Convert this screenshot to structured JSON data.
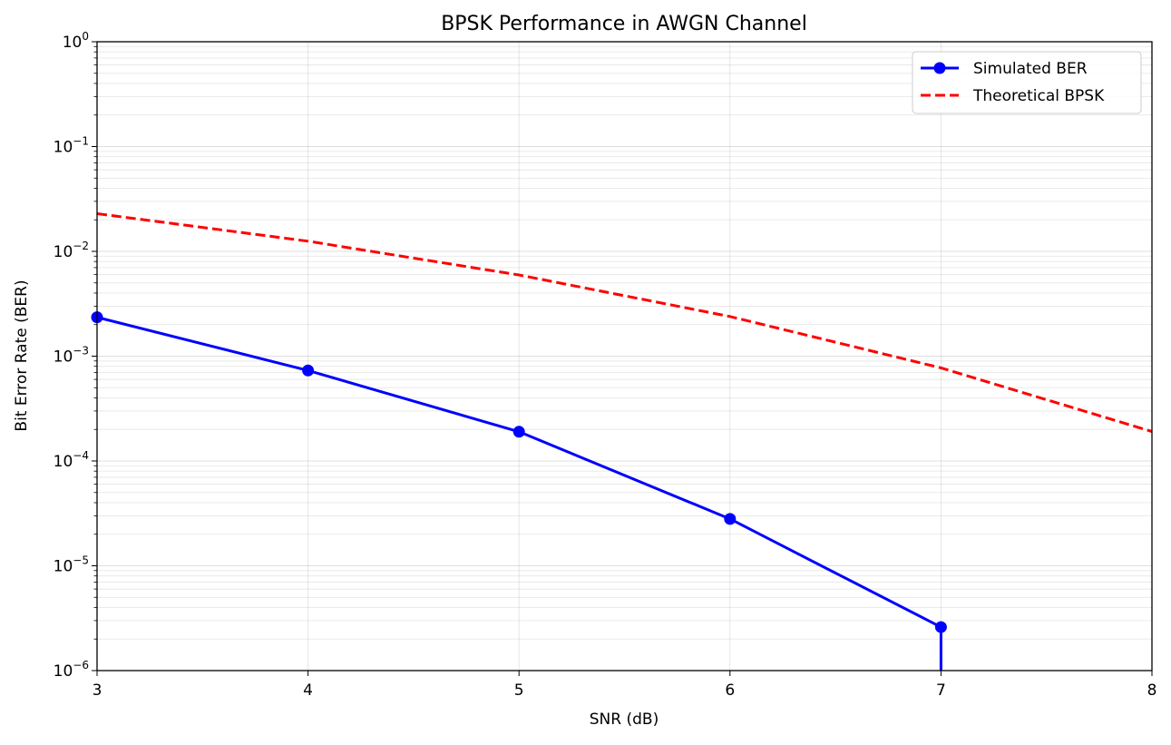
{
  "chart_data": {
    "type": "line",
    "title": "BPSK Performance in AWGN Channel",
    "xlabel": "SNR (dB)",
    "ylabel": "Bit Error Rate (BER)",
    "x_scale": "linear",
    "y_scale": "log",
    "xlim": [
      3,
      8
    ],
    "ylim": [
      1e-06,
      1
    ],
    "x_ticks": [
      3,
      4,
      5,
      6,
      7,
      8
    ],
    "x_tick_labels": [
      "3",
      "4",
      "5",
      "6",
      "7",
      "8"
    ],
    "y_ticks": [
      {
        "value": 1,
        "base": "10",
        "exp": "0"
      },
      {
        "value": 0.1,
        "base": "10",
        "exp": "−1"
      },
      {
        "value": 0.01,
        "base": "10",
        "exp": "−2"
      },
      {
        "value": 0.001,
        "base": "10",
        "exp": "−3"
      },
      {
        "value": 0.0001,
        "base": "10",
        "exp": "−4"
      },
      {
        "value": 1e-05,
        "base": "10",
        "exp": "−5"
      },
      {
        "value": 1e-06,
        "base": "10",
        "exp": "−6"
      }
    ],
    "grid": true,
    "legend_position": "top-right",
    "series": [
      {
        "name": "Simulated BER",
        "color": "#0000ff",
        "style": "solid",
        "marker": "circle",
        "x": [
          3,
          4,
          5,
          6,
          7
        ],
        "y": [
          0.00235,
          0.00073,
          0.00019,
          2.8e-05,
          2.6e-06
        ],
        "drop_to_axis_at_end": true
      },
      {
        "name": "Theoretical BPSK",
        "color": "#ff0000",
        "style": "dashed",
        "marker": "none",
        "x": [
          3,
          4,
          5,
          6,
          7,
          8
        ],
        "y": [
          0.0229,
          0.0125,
          0.00595,
          0.00239,
          0.000773,
          0.000191
        ]
      }
    ]
  }
}
